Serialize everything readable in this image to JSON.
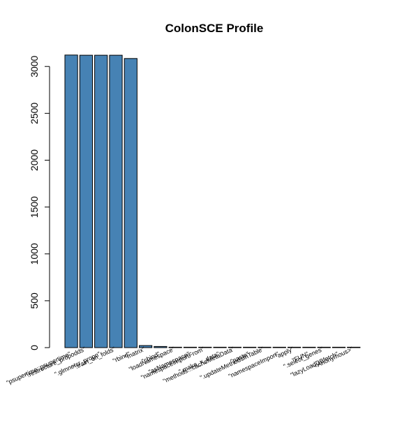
{
  "chart_data": {
    "type": "bar",
    "title": "ColonSCE Profile",
    "xlabel": "",
    "ylabel": "",
    "ylim": [
      0,
      3200
    ],
    "yticks": [
      0,
      500,
      1000,
      1500,
      2000,
      2500,
      3000
    ],
    "grid": false,
    "legend": "none",
    "bar_color": "#4682B4",
    "bar_border_color": "#000000",
    "categories": [
      "\"psupertime::psupertime\"",
      "\".restructure_propodds\"",
      "\".glmnetcr_propn\"",
      "\".train_on_folds\"",
      "\"rbind\"",
      "\"matrix\"",
      "\"cbind\"",
      "\"loadNamespace\"",
      "\"asNamespace\"",
      "\"namespaceImportFrom\"",
      "\".make_x_data\"",
      "\"methods:::cacheMetaData\"",
      "\"paste\"",
      "\".updateMethodsInTable\"",
      "\"namespaceImport\"",
      "\"apply\"",
      "\"FUN\"",
      "\".select_genes\"",
      "\"lazyLoadDBfetch\"",
      "\"<Anonymous>\""
    ],
    "values": [
      3122,
      3120,
      3120,
      3120,
      3085,
      22,
      12,
      4,
      4,
      4,
      4,
      3,
      3,
      3,
      3,
      2,
      2,
      2,
      2,
      2
    ]
  }
}
